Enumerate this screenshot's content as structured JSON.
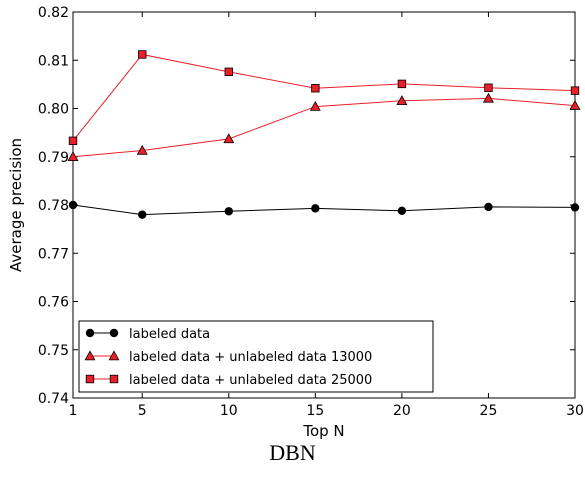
{
  "chart_data": {
    "type": "line",
    "x": [
      1,
      5,
      10,
      15,
      20,
      25,
      30
    ],
    "xlabel": "Top N",
    "ylabel": "Average precision",
    "xlim": [
      1,
      30
    ],
    "ylim": [
      0.74,
      0.82
    ],
    "x_ticks": [
      1,
      5,
      10,
      15,
      20,
      25,
      30
    ],
    "y_ticks": [
      "0.74",
      "0.75",
      "0.76",
      "0.77",
      "0.78",
      "0.79",
      "0.80",
      "0.81",
      "0.82"
    ],
    "grid": false,
    "legend_position": "lower-left",
    "series": [
      {
        "name": "labeled data",
        "values": [
          0.78,
          0.778,
          0.7787,
          0.7793,
          0.7788,
          0.7796,
          0.7795
        ],
        "marker": "circle",
        "color": "#000000"
      },
      {
        "name": "labeled data + unlabeled data 13000",
        "values": [
          0.79,
          0.7913,
          0.7937,
          0.8004,
          0.8016,
          0.8021,
          0.8006
        ],
        "marker": "triangle",
        "color": "#e8202a"
      },
      {
        "name": "labeled data + unlabeled data 25000",
        "values": [
          0.7933,
          0.8112,
          0.8076,
          0.8042,
          0.8051,
          0.8043,
          0.8037
        ],
        "marker": "square",
        "color": "#e8202a"
      }
    ]
  },
  "caption": "DBN"
}
